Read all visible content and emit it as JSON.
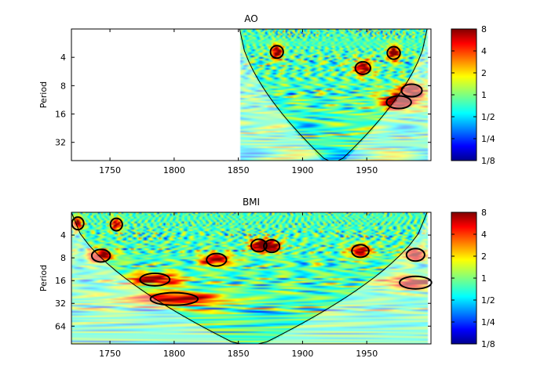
{
  "chart_data": [
    {
      "type": "heatmap",
      "title": "AO",
      "xlabel": "",
      "ylabel": "Period",
      "xlim": [
        1720,
        2000
      ],
      "ylim_period": [
        2,
        50
      ],
      "y_scale": "log2",
      "x_ticks": [
        1750,
        1800,
        1850,
        1900,
        1950
      ],
      "y_ticks": [
        "4",
        "8",
        "16",
        "32"
      ],
      "data_start": 1851,
      "data_end": 1997,
      "colorbar": {
        "labels": [
          "8",
          "4",
          "2",
          "1",
          "1/2",
          "1/4",
          "1/8"
        ],
        "range": [
          0.125,
          8
        ],
        "scale": "log2",
        "colormap": "jet"
      },
      "significant_regions": [
        {
          "year": 1880,
          "period": 3.5
        },
        {
          "year": 1947,
          "period": 5.2
        },
        {
          "year": 1971,
          "period": 3.6
        },
        {
          "year": 1975,
          "period": 12.0
        },
        {
          "year": 1985,
          "period": 9.0
        }
      ],
      "cone_of_influence": true
    },
    {
      "type": "heatmap",
      "title": "BMI",
      "xlabel": "",
      "ylabel": "Period",
      "xlim": [
        1720,
        2000
      ],
      "ylim_period": [
        2,
        110
      ],
      "y_scale": "log2",
      "x_ticks": [
        1750,
        1800,
        1850,
        1900,
        1950
      ],
      "y_ticks": [
        "4",
        "8",
        "16",
        "32",
        "64"
      ],
      "data_start": 1720,
      "data_end": 1997,
      "colorbar": {
        "labels": [
          "8",
          "4",
          "2",
          "1",
          "1/2",
          "1/4",
          "1/8"
        ],
        "range": [
          0.125,
          8
        ],
        "scale": "log2",
        "colormap": "jet"
      },
      "significant_regions": [
        {
          "year": 1725,
          "period": 2.8
        },
        {
          "year": 1755,
          "period": 2.9
        },
        {
          "year": 1743,
          "period": 7.5
        },
        {
          "year": 1785,
          "period": 15.5
        },
        {
          "year": 1800,
          "period": 28
        },
        {
          "year": 1833,
          "period": 8.5
        },
        {
          "year": 1866,
          "period": 5.5
        },
        {
          "year": 1876,
          "period": 5.6
        },
        {
          "year": 1945,
          "period": 6.5
        },
        {
          "year": 1988,
          "period": 7.3
        },
        {
          "year": 1988,
          "period": 17
        }
      ],
      "cone_of_influence": true
    }
  ]
}
